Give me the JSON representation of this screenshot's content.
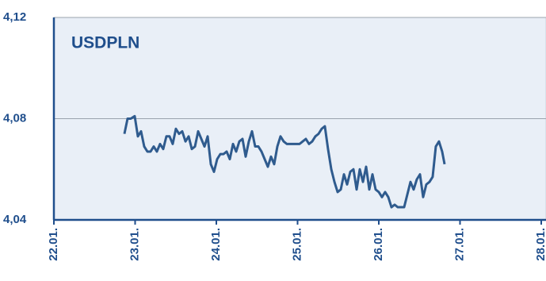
{
  "chart_data": {
    "type": "line",
    "title": "USDPLN",
    "color": "#2f5b8e",
    "grid": true,
    "xlim": [
      22,
      28
    ],
    "xticks": [
      {
        "value": 22,
        "label": "22.01."
      },
      {
        "value": 23,
        "label": "23.01."
      },
      {
        "value": 24,
        "label": "24.01."
      },
      {
        "value": 25,
        "label": "25.01."
      },
      {
        "value": 26,
        "label": "26.01."
      },
      {
        "value": 27,
        "label": "27.01."
      },
      {
        "value": 28,
        "label": "28.01."
      }
    ],
    "ylim": [
      4.04,
      4.12
    ],
    "yticks": [
      {
        "value": 4.04,
        "label": "4,04"
      },
      {
        "value": 4.08,
        "label": "4,08"
      },
      {
        "value": 4.12,
        "label": "4,12"
      }
    ],
    "x": [
      22.868,
      22.907,
      22.946,
      22.995,
      23.034,
      23.073,
      23.112,
      23.151,
      23.19,
      23.229,
      23.268,
      23.307,
      23.346,
      23.385,
      23.424,
      23.463,
      23.502,
      23.541,
      23.58,
      23.62,
      23.659,
      23.698,
      23.737,
      23.776,
      23.815,
      23.854,
      23.893,
      23.932,
      23.971,
      24.01,
      24.049,
      24.088,
      24.127,
      24.166,
      24.205,
      24.244,
      24.283,
      24.322,
      24.361,
      24.4,
      24.439,
      24.478,
      24.517,
      24.556,
      24.595,
      24.634,
      24.673,
      24.712,
      24.751,
      24.79,
      24.829,
      24.868,
      24.907,
      24.946,
      24.985,
      25.024,
      25.063,
      25.102,
      25.141,
      25.18,
      25.219,
      25.258,
      25.297,
      25.336,
      25.375,
      25.415,
      25.454,
      25.493,
      25.532,
      25.571,
      25.61,
      25.649,
      25.688,
      25.727,
      25.766,
      25.805,
      25.844,
      25.883,
      25.922,
      25.961,
      26.0,
      26.039,
      26.078,
      26.117,
      26.156,
      26.195,
      26.234,
      26.273,
      26.312,
      26.351,
      26.39,
      26.429,
      26.468,
      26.507,
      26.546,
      26.585,
      26.624,
      26.663,
      26.702,
      26.741,
      26.78,
      26.81
    ],
    "values": [
      4.074,
      4.08,
      4.08,
      4.081,
      4.073,
      4.075,
      4.069,
      4.067,
      4.067,
      4.069,
      4.067,
      4.07,
      4.068,
      4.073,
      4.073,
      4.07,
      4.076,
      4.074,
      4.075,
      4.071,
      4.073,
      4.068,
      4.069,
      4.075,
      4.072,
      4.069,
      4.073,
      4.062,
      4.059,
      4.064,
      4.066,
      4.066,
      4.067,
      4.064,
      4.07,
      4.067,
      4.071,
      4.072,
      4.065,
      4.071,
      4.075,
      4.069,
      4.069,
      4.067,
      4.064,
      4.061,
      4.065,
      4.062,
      4.069,
      4.073,
      4.071,
      4.07,
      4.07,
      4.07,
      4.07,
      4.07,
      4.071,
      4.072,
      4.07,
      4.071,
      4.073,
      4.074,
      4.076,
      4.077,
      4.068,
      4.06,
      4.055,
      4.051,
      4.052,
      4.058,
      4.054,
      4.059,
      4.06,
      4.052,
      4.06,
      4.055,
      4.061,
      4.052,
      4.058,
      4.052,
      4.051,
      4.049,
      4.051,
      4.049,
      4.045,
      4.046,
      4.045,
      4.045,
      4.045,
      4.05,
      4.055,
      4.052,
      4.056,
      4.058,
      4.049,
      4.054,
      4.055,
      4.057,
      4.069,
      4.071,
      4.067,
      4.062
    ]
  }
}
